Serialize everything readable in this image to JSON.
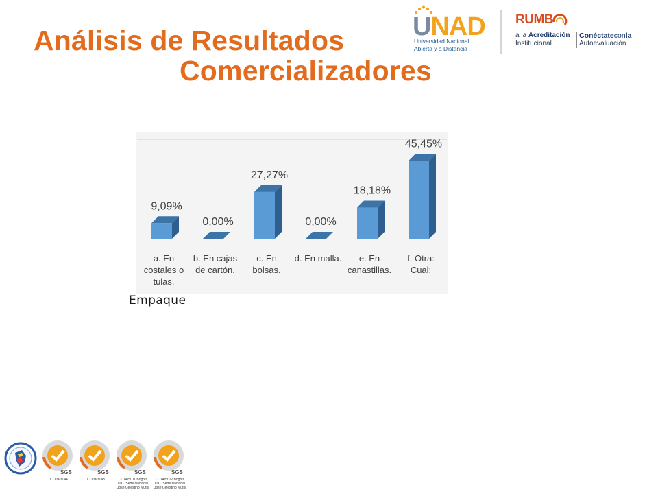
{
  "header": {
    "title_line1": "Análisis de Resultados",
    "title_line2": "Comercializadores"
  },
  "logos": {
    "unad": {
      "mark_u": "U",
      "mark_nad": "NAD",
      "sub1": "Universidad Nacional",
      "sub2": "Abierta y a Distancia"
    },
    "rumbo": {
      "word": "RUMB",
      "line1_prefix": "a la ",
      "line1_bold": "Acreditación",
      "line2": "Institucional",
      "right1_bold": "Conéctate",
      "right1_rest": "con",
      "right1_end": "la",
      "right2": "Autoevaluación"
    }
  },
  "chart_data": {
    "type": "bar",
    "categories": [
      [
        "a. En",
        "costales o",
        "tulas."
      ],
      [
        "b. En cajas",
        "de cartón."
      ],
      [
        "c. En",
        "bolsas."
      ],
      [
        "d. En malla."
      ],
      [
        "e. En",
        "canastillas."
      ],
      [
        "f. Otra:",
        "Cual:"
      ]
    ],
    "values": [
      9.09,
      0.0,
      27.27,
      0.0,
      18.18,
      45.45
    ],
    "data_labels": [
      "9,09%",
      "0,00%",
      "27,27%",
      "0,00%",
      "18,18%",
      "45,45%"
    ],
    "ylim": [
      0,
      50
    ],
    "grid": false,
    "colors": {
      "front": "#5b9bd5",
      "side": "#2f5f8f",
      "top": "#3d74a8"
    }
  },
  "caption": "Empaque",
  "certifications": [
    {
      "name": "colombia-seal",
      "code": ""
    },
    {
      "name": "iso-9001-badge",
      "code": "CO09/3144"
    },
    {
      "name": "iso-9001-badge-2",
      "code": "CO09/3143"
    },
    {
      "name": "iso-14001-badge",
      "code": "CO14/5011 Bogotá D.C. Sede Nacional José Celestino Mutis"
    },
    {
      "name": "ohsas-badge",
      "code": "CO14/5012 Bogotá D.C. Sede Nacional José Celestino Mutis"
    }
  ],
  "badge_brand": "SGS"
}
